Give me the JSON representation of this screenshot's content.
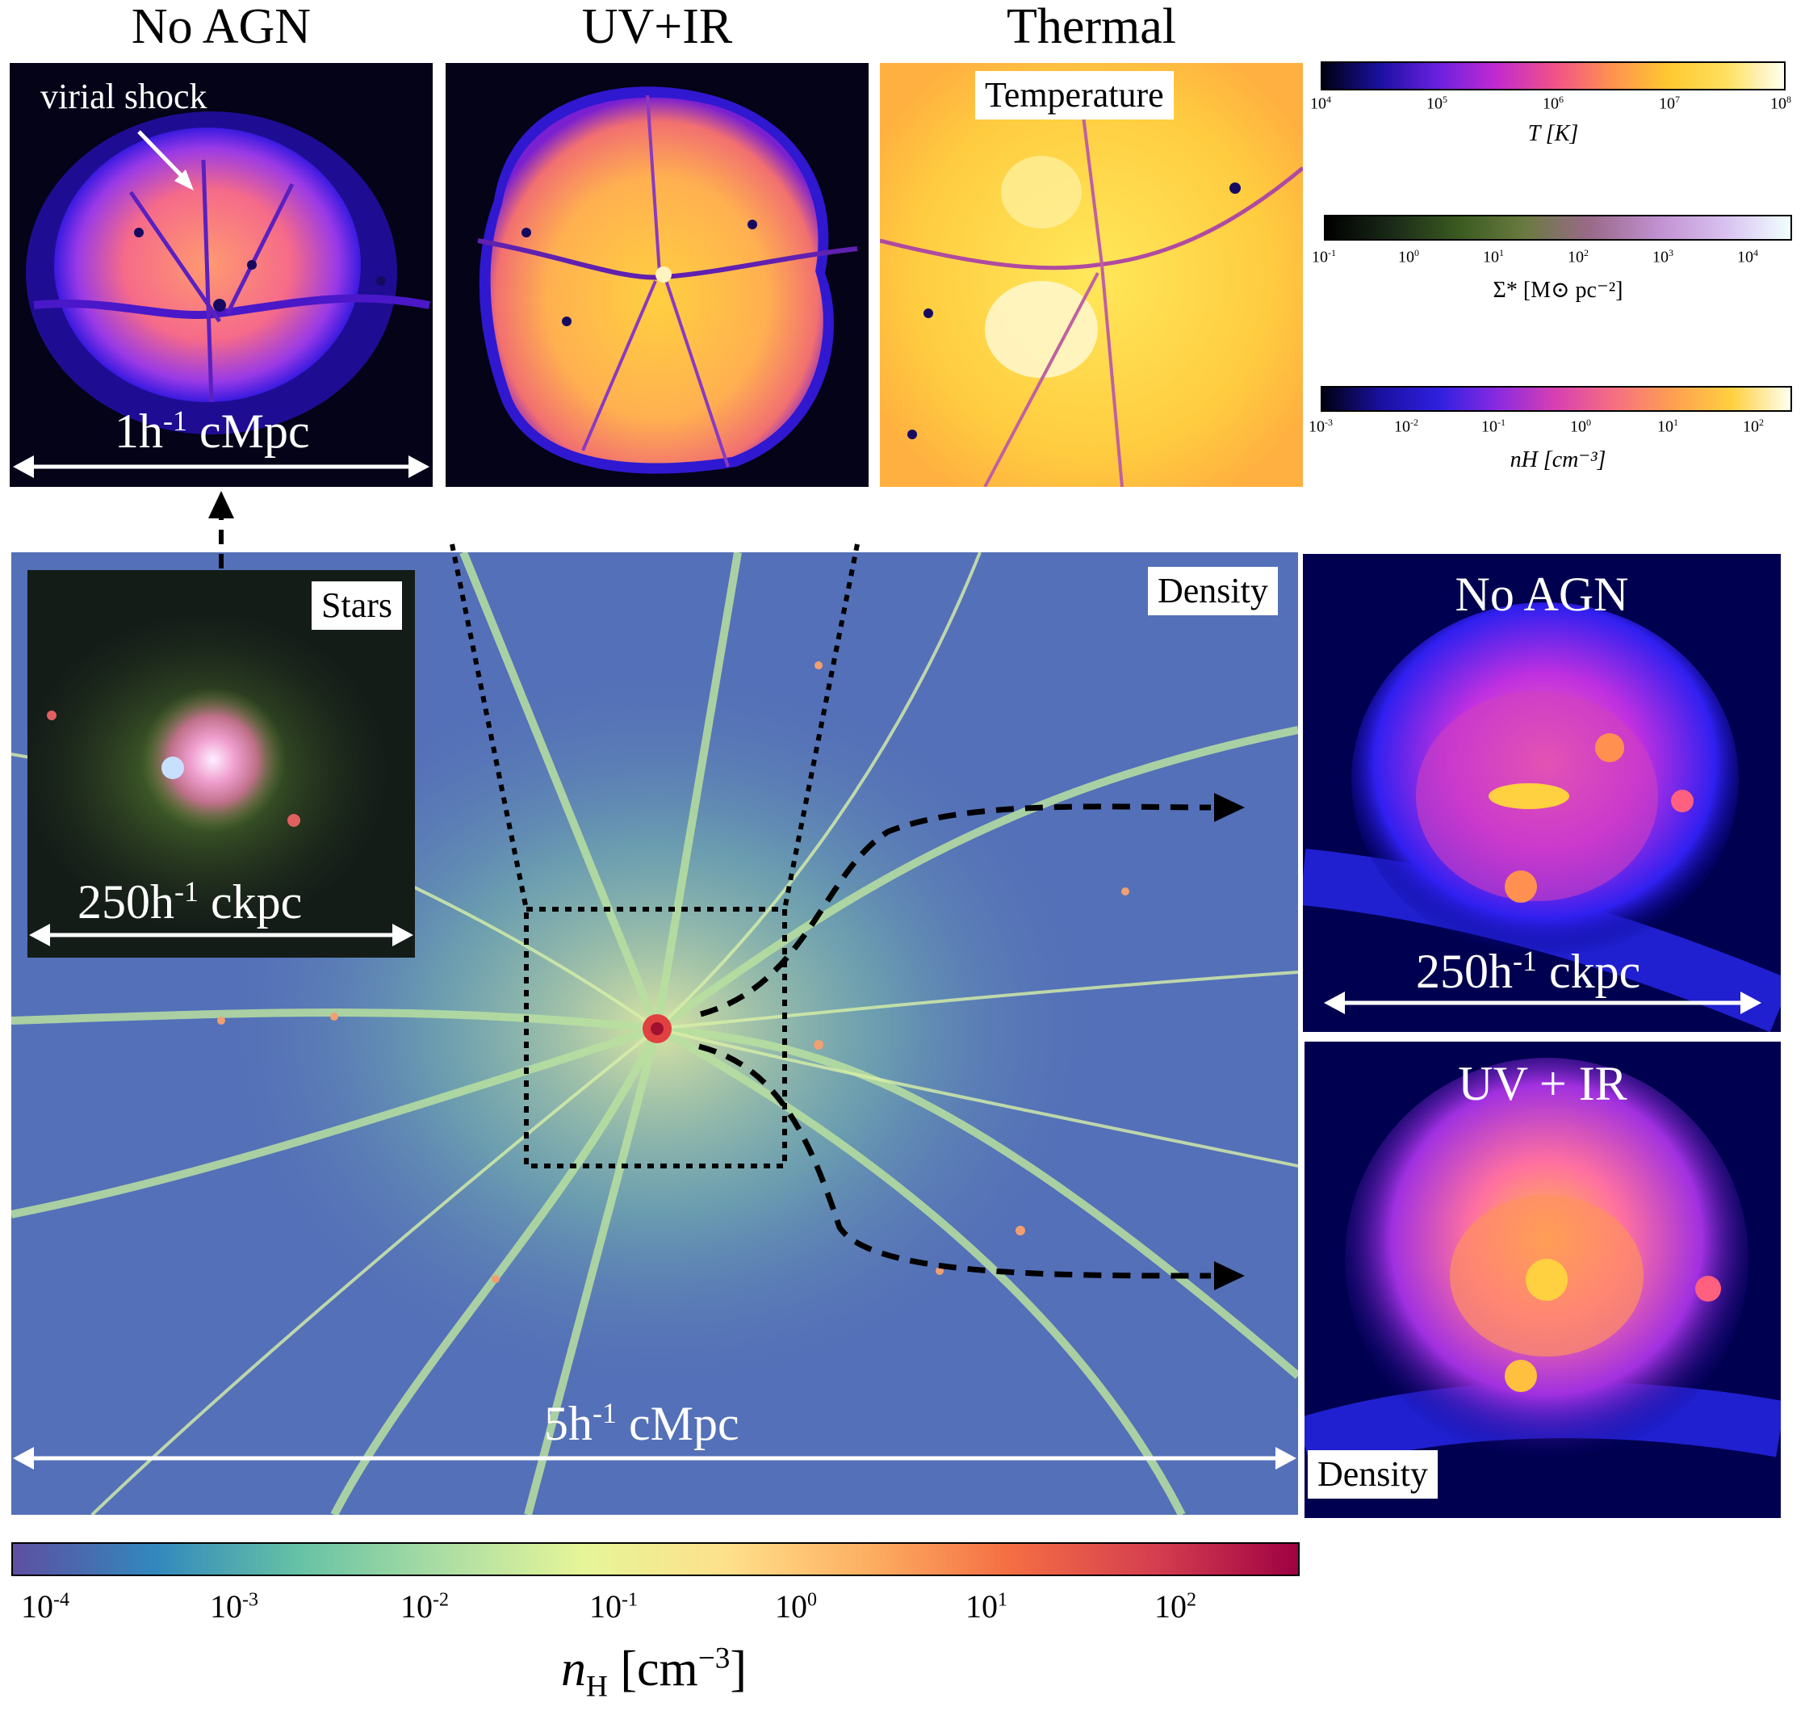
{
  "top_titles": [
    "No AGN",
    "UV+IR",
    "Thermal"
  ],
  "top_panels": {
    "annotation": "virial shock",
    "scale_value": "1h",
    "scale_exp": "-1",
    "scale_unit": "cMpc",
    "thermal_label": "Temperature"
  },
  "colorbars_small": [
    {
      "label": "T [K]",
      "ticks": [
        "10",
        "10",
        "10",
        "10",
        "10"
      ],
      "exps": [
        "4",
        "5",
        "6",
        "7",
        "8"
      ]
    },
    {
      "label": "Σ* [M⊙ pc⁻²]",
      "ticks": [
        "10",
        "10",
        "10",
        "10",
        "10",
        "10"
      ],
      "exps": [
        "-1",
        "0",
        "1",
        "2",
        "3",
        "4"
      ]
    },
    {
      "label": "nH [cm⁻³]",
      "ticks": [
        "10",
        "10",
        "10",
        "10",
        "10",
        "10"
      ],
      "exps": [
        "-3",
        "-2",
        "-1",
        "0",
        "1",
        "2"
      ]
    }
  ],
  "main_panel": {
    "label": "Density",
    "scale_value": "5h",
    "scale_exp": "-1",
    "scale_unit": "cMpc"
  },
  "inset": {
    "label": "Stars",
    "scale_value": "250h",
    "scale_exp": "-1",
    "scale_unit": "ckpc"
  },
  "right_panels": {
    "top_title": "No AGN",
    "bottom_title": "UV + IR",
    "scale_value": "250h",
    "scale_exp": "-1",
    "scale_unit": "ckpc",
    "bottom_label": "Density"
  },
  "colorbar_main": {
    "ticks": [
      "10",
      "10",
      "10",
      "10",
      "10",
      "10",
      "10"
    ],
    "exps": [
      "-4",
      "-3",
      "-2",
      "-1",
      "0",
      "1",
      "2"
    ],
    "label_sym": "n",
    "label_sub": "H",
    "label_unit": "[cm",
    "label_exp": "−3",
    "label_close": "]"
  }
}
